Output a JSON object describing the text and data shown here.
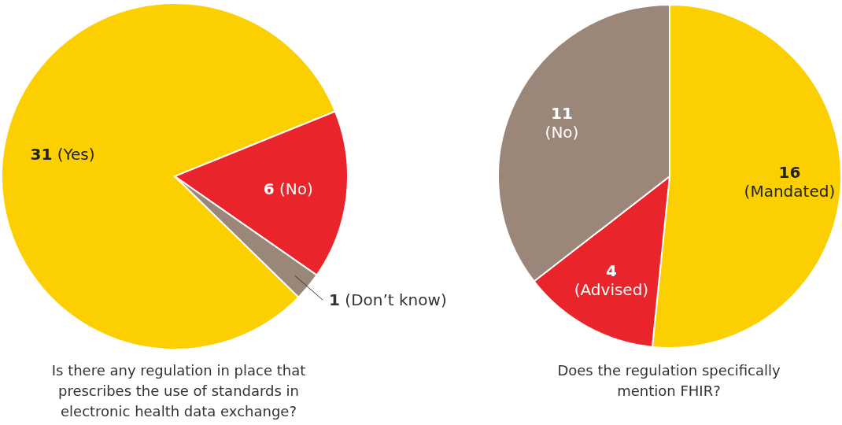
{
  "chart_data": [
    {
      "type": "pie",
      "title": "Is there any regulation in place that prescribes the use of standards in electronic health data exchange?",
      "categories": [
        "(Yes)",
        "(No)",
        "(Don’t know)"
      ],
      "values": [
        31,
        6,
        1
      ],
      "colors": [
        "#fccf00",
        "#ea242b",
        "#9b8779"
      ],
      "data_labels": true
    },
    {
      "type": "pie",
      "title": "Does the regulation specifically mention FHIR?",
      "categories": [
        "(Mandated)",
        "(Advised)",
        "(No)"
      ],
      "values": [
        16,
        4,
        11
      ],
      "colors": [
        "#fccf00",
        "#ea242b",
        "#9b8779"
      ],
      "data_labels": true
    }
  ]
}
